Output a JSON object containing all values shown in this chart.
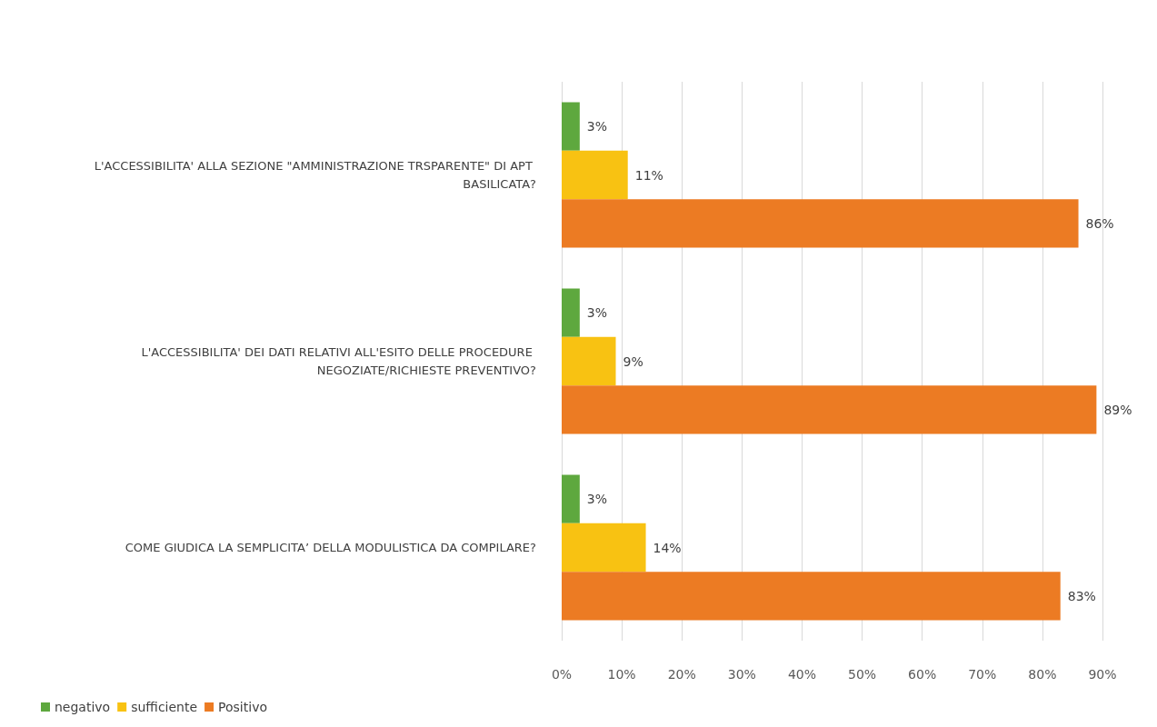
{
  "chart_data": {
    "type": "bar",
    "orientation": "horizontal",
    "categories": [
      "L'ACCESSIBILITA' ALLA SEZIONE \"AMMINISTRAZIONE TRSPARENTE\" DI APT BASILICATA?",
      "L'ACCESSIBILITA' DEI DATI RELATIVI ALL'ESITO DELLE PROCEDURE NEGOZIATE/RICHIESTE PREVENTIVO?",
      "COME GIUDICA LA SEMPLICITA’ DELLA MODULISTICA DA COMPILARE?"
    ],
    "series": [
      {
        "name": "negativo",
        "color": "#5ea83e",
        "values": [
          3,
          3,
          3
        ],
        "value_labels": [
          "3%",
          "3%",
          "3%"
        ]
      },
      {
        "name": "sufficiente",
        "color": "#f8c212",
        "values": [
          11,
          9,
          14
        ],
        "value_labels": [
          "11%",
          "9%",
          "14%"
        ]
      },
      {
        "name": "Positivo",
        "color": "#ec7b23",
        "values": [
          86,
          89,
          83
        ],
        "value_labels": [
          "86%",
          "89%",
          "83%"
        ]
      }
    ],
    "xlim": [
      0,
      90
    ],
    "xticks": [
      {
        "value": 0,
        "label": "0%"
      },
      {
        "value": 10,
        "label": "10%"
      },
      {
        "value": 20,
        "label": "20%"
      },
      {
        "value": 30,
        "label": "30%"
      },
      {
        "value": 40,
        "label": "40%"
      },
      {
        "value": 50,
        "label": "50%"
      },
      {
        "value": 60,
        "label": "60%"
      },
      {
        "value": 70,
        "label": "70%"
      },
      {
        "value": 80,
        "label": "80%"
      },
      {
        "value": 90,
        "label": "90%"
      }
    ],
    "grid": "x",
    "legend": "bottom left"
  }
}
